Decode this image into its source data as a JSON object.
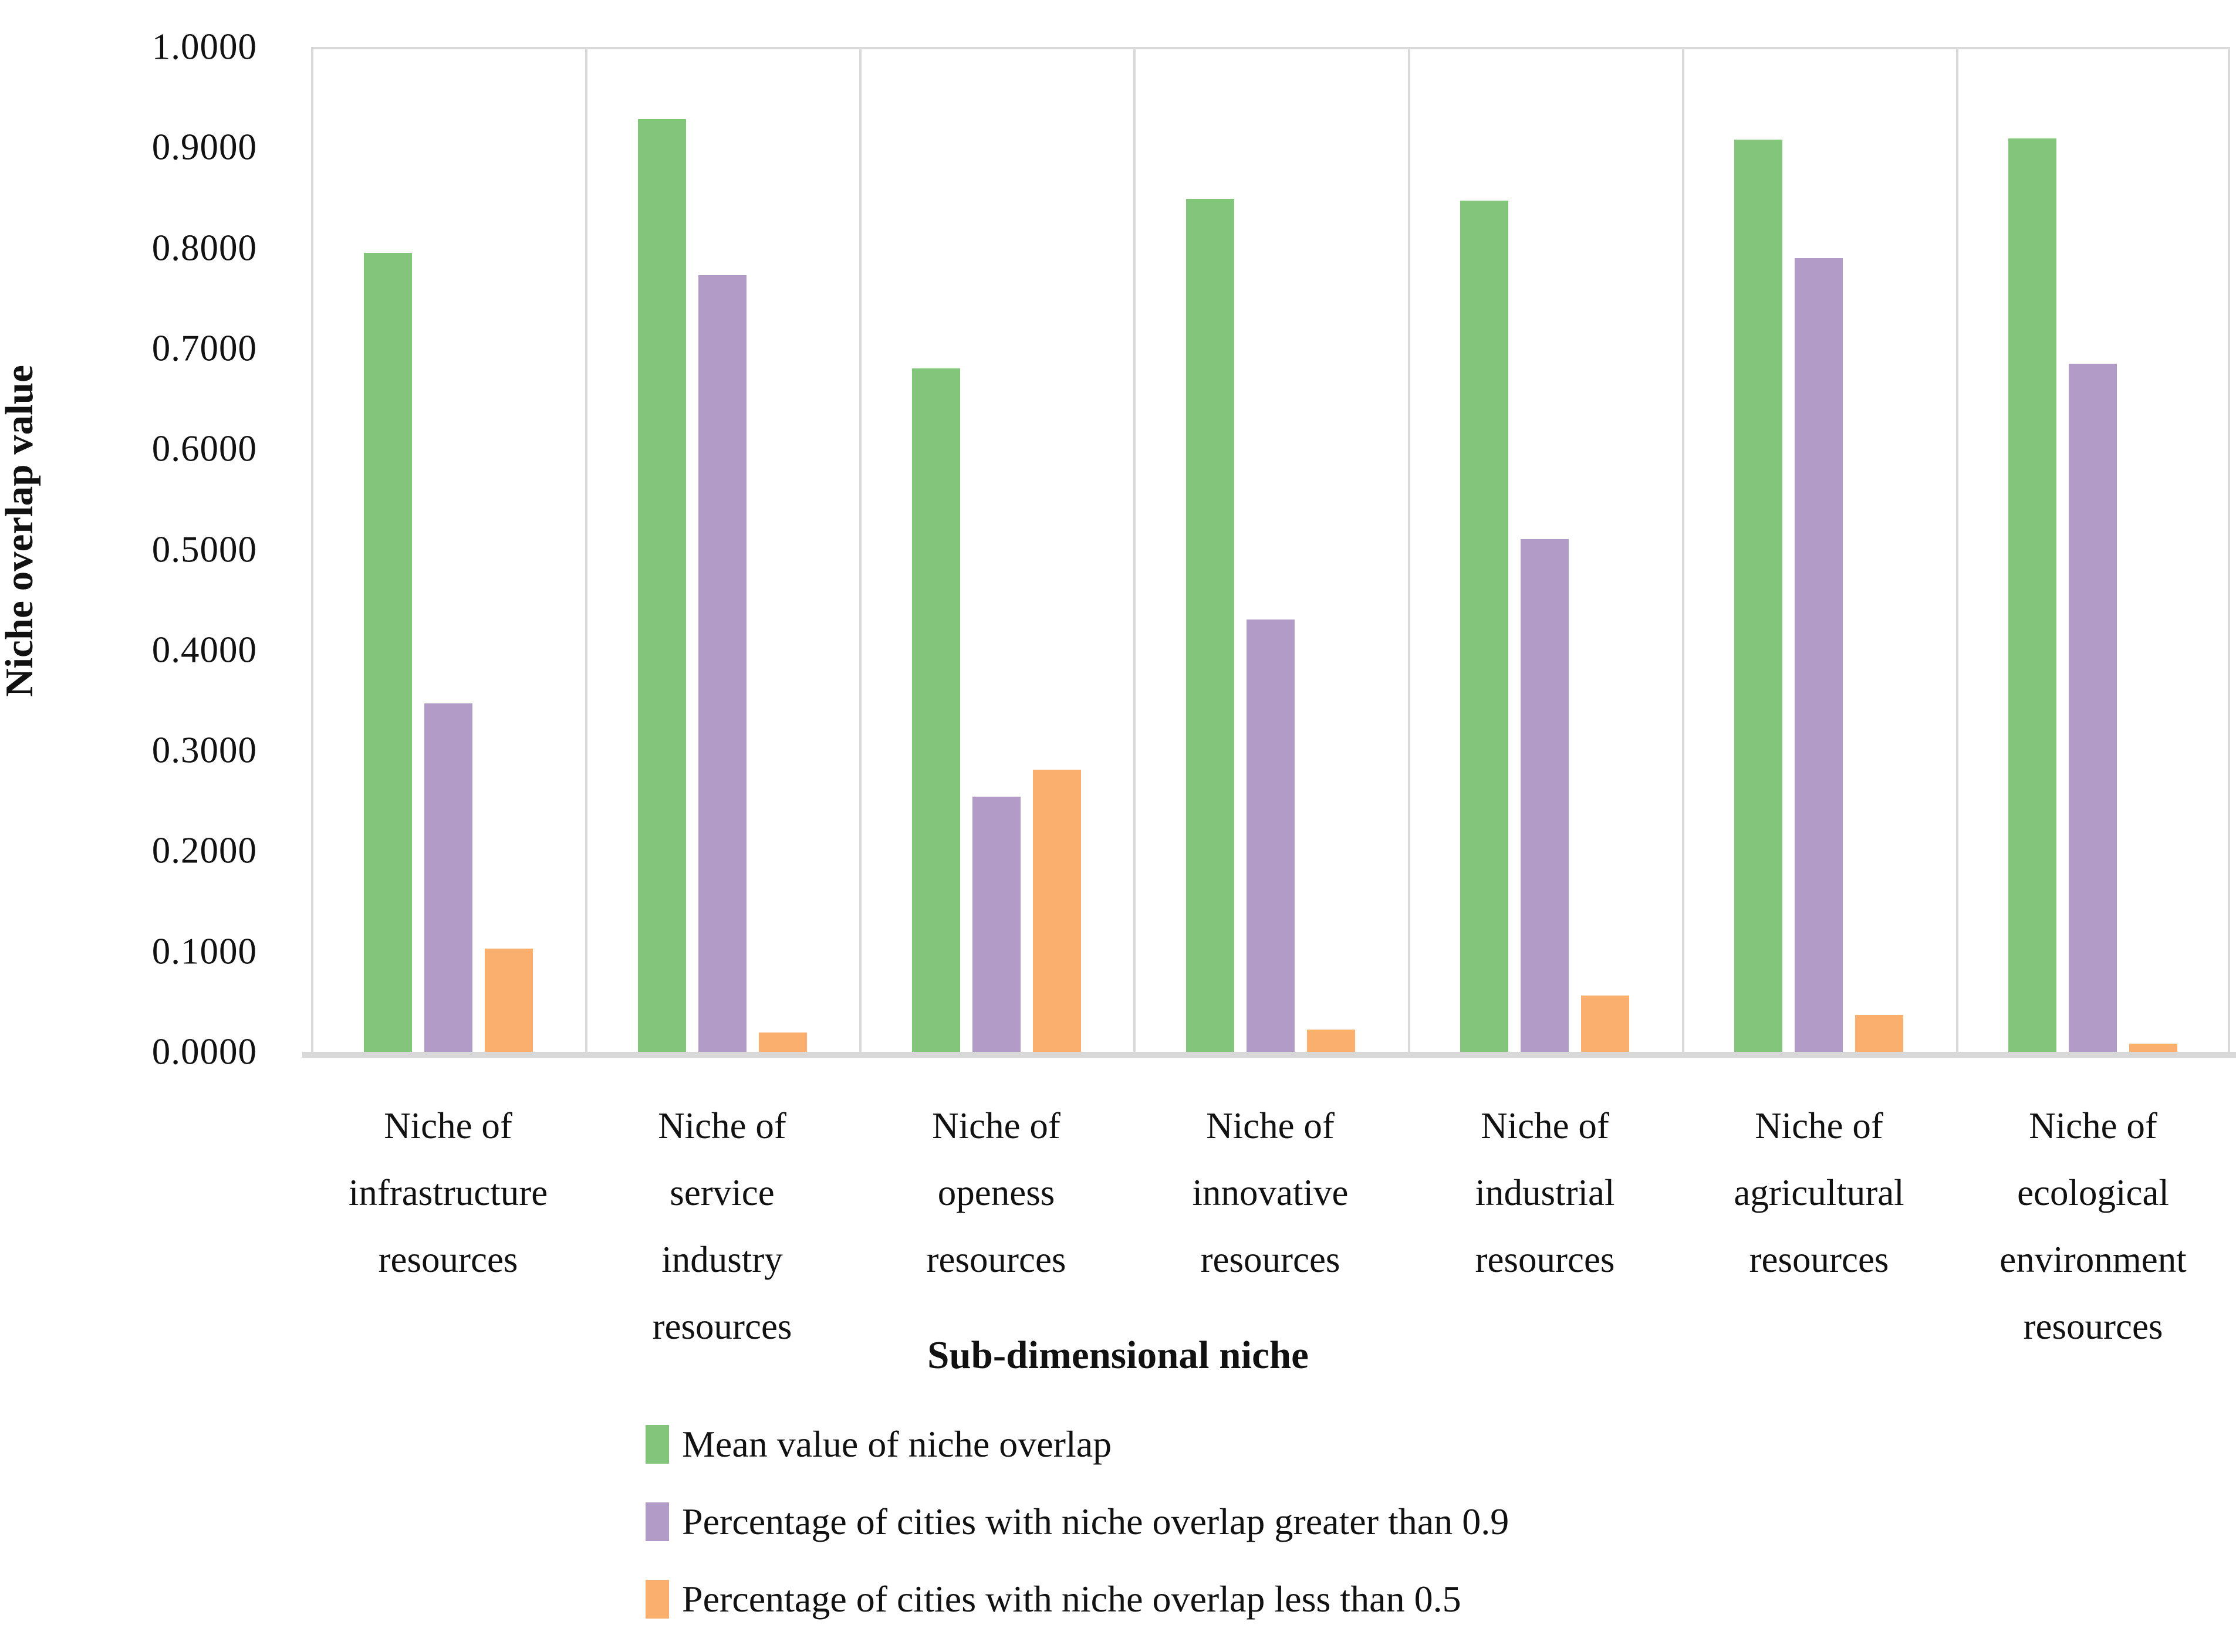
{
  "chart_data": {
    "type": "bar",
    "title": "",
    "xlabel": "Sub-dimensional niche",
    "ylabel": "Niche overlap value",
    "ylim": [
      0.0,
      1.0
    ],
    "ytick_step": 0.1,
    "ytick_labels": [
      "1.0000",
      "0.9000",
      "0.8000",
      "0.7000",
      "0.6000",
      "0.5000",
      "0.4000",
      "0.3000",
      "0.2000",
      "0.1000",
      "0.0000"
    ],
    "grid": "vertical-separators-only",
    "legend_position": "bottom-left",
    "categories": [
      "Niche of infrastructure resources",
      "Niche of service industry resources",
      "Niche of openess resources",
      "Niche of innovative resources",
      "Niche of industrial resources",
      "Niche of agricultural resources",
      "Niche of ecological environment resources"
    ],
    "category_lines": [
      [
        "Niche of",
        "infrastructure",
        "resources"
      ],
      [
        "Niche of",
        "service",
        "industry",
        "resources"
      ],
      [
        "Niche of",
        "openess",
        "resources"
      ],
      [
        "Niche of",
        "innovative",
        "resources"
      ],
      [
        "Niche of",
        "industrial",
        "resources"
      ],
      [
        "Niche of",
        "agricultural",
        "resources"
      ],
      [
        "Niche of",
        "ecological",
        "environment",
        "resources"
      ]
    ],
    "series": [
      {
        "name": "Mean value of niche overlap",
        "color": "#82c57b",
        "values": [
          0.795,
          0.928,
          0.68,
          0.849,
          0.847,
          0.908,
          0.909
        ]
      },
      {
        "name": "Percentage of cities with niche overlap greater than 0.9",
        "color": "#b39bc8",
        "values": [
          0.347,
          0.773,
          0.254,
          0.43,
          0.51,
          0.79,
          0.685
        ]
      },
      {
        "name": "Percentage of cities with niche overlap less than 0.5",
        "color": "#faaf6e",
        "values": [
          0.103,
          0.019,
          0.281,
          0.022,
          0.056,
          0.037,
          0.008
        ]
      }
    ]
  },
  "axis_colors": {
    "line": "#d9d9d9",
    "baseline": "#d8d8d8",
    "text": "#111111"
  }
}
